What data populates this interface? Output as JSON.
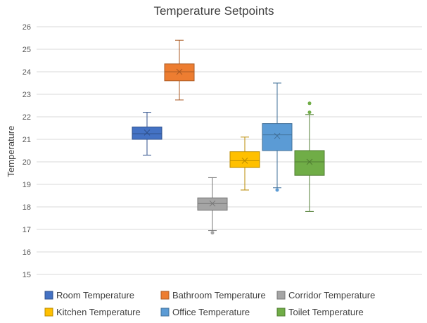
{
  "chart_data": {
    "type": "box",
    "title": "Temperature Setpoints",
    "xlabel": "",
    "ylabel": "Temperature",
    "ylim": [
      15,
      26
    ],
    "yticks": [
      15,
      16,
      17,
      18,
      19,
      20,
      21,
      22,
      23,
      24,
      25,
      26
    ],
    "grid": true,
    "legend_position": "bottom",
    "series": [
      {
        "name": "Room Temperature",
        "color": "#4472C4",
        "min": 20.3,
        "q1": 21.0,
        "median": 21.25,
        "q3": 21.55,
        "max": 22.2,
        "mean": 21.3,
        "outliers": []
      },
      {
        "name": "Bathroom Temperature",
        "color": "#ED7D31",
        "min": 22.75,
        "q1": 23.6,
        "median": 24.0,
        "q3": 24.35,
        "max": 25.4,
        "mean": 24.0,
        "outliers": []
      },
      {
        "name": "Corridor Temperature",
        "color": "#A5A5A5",
        "min": 16.95,
        "q1": 17.85,
        "median": 18.15,
        "q3": 18.4,
        "max": 19.3,
        "mean": 18.15,
        "outliers": [
          16.85
        ]
      },
      {
        "name": "Kitchen Temperature",
        "color": "#FFC000",
        "min": 18.75,
        "q1": 19.75,
        "median": 20.05,
        "q3": 20.45,
        "max": 21.1,
        "mean": 20.05,
        "outliers": []
      },
      {
        "name": "Office Temperature",
        "color": "#5B9BD5",
        "min": 18.85,
        "q1": 20.5,
        "median": 21.2,
        "q3": 21.7,
        "max": 23.5,
        "mean": 21.15,
        "outliers": [
          18.75
        ]
      },
      {
        "name": "Toilet Temperature",
        "color": "#70AD47",
        "min": 17.8,
        "q1": 19.4,
        "median": 20.0,
        "q3": 20.5,
        "max": 22.1,
        "mean": 20.0,
        "outliers": [
          22.2,
          22.6
        ]
      }
    ]
  }
}
